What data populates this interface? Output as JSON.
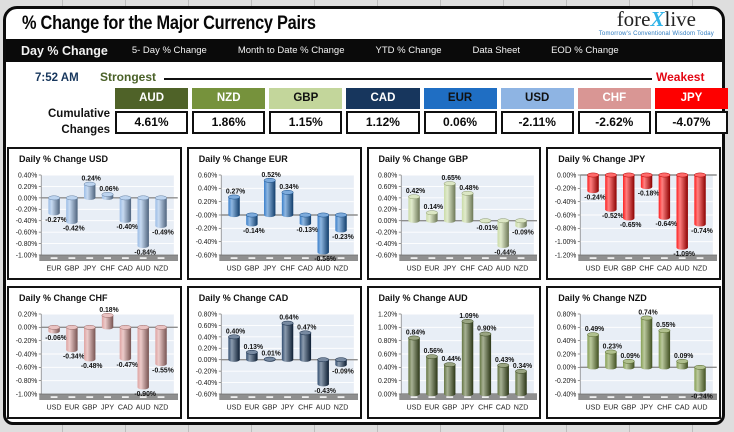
{
  "header": {
    "title": "% Change for the Major Currency Pairs",
    "logo": {
      "part1": "fore",
      "part2": "X",
      "part3": "live",
      "tagline": "Tomorrow's Conventional Wisdom Today"
    }
  },
  "tabs": [
    {
      "label": "Day % Change",
      "active": true
    },
    {
      "label": "5- Day % Change",
      "active": false
    },
    {
      "label": "Month to Date % Change",
      "active": false
    },
    {
      "label": "YTD % Change",
      "active": false
    },
    {
      "label": "Data Sheet",
      "active": false
    },
    {
      "label": "EOD % Change",
      "active": false
    }
  ],
  "status": {
    "time": "7:52 AM",
    "strongest_label": "Strongest",
    "weakest_label": "Weakest",
    "cumulative_label": "Cumulative Changes"
  },
  "cumulative": [
    {
      "code": "AUD",
      "value": "4.61%",
      "bg": "#4f6228",
      "fg": "#ffffff"
    },
    {
      "code": "NZD",
      "value": "1.86%",
      "bg": "#76923c",
      "fg": "#ffffff"
    },
    {
      "code": "GBP",
      "value": "1.15%",
      "bg": "#c3d69b",
      "fg": "#111111"
    },
    {
      "code": "CAD",
      "value": "1.12%",
      "bg": "#17365d",
      "fg": "#ffffff"
    },
    {
      "code": "EUR",
      "value": "0.06%",
      "bg": "#1f6ec3",
      "fg": "#111111"
    },
    {
      "code": "USD",
      "value": "-2.11%",
      "bg": "#8eb4e3",
      "fg": "#111111"
    },
    {
      "code": "CHF",
      "value": "-2.62%",
      "bg": "#d99694",
      "fg": "#ffffff"
    },
    {
      "code": "JPY",
      "value": "-4.07%",
      "bg": "#fe0000",
      "fg": "#ffffff"
    }
  ],
  "chart_data": [
    {
      "type": "bar",
      "title": "Daily % Change USD",
      "bar_color": "#8eb4e3",
      "categories": [
        "EUR",
        "GBP",
        "JPY",
        "CHF",
        "CAD",
        "AUD",
        "NZD"
      ],
      "values": [
        -0.27,
        -0.42,
        0.24,
        0.06,
        -0.4,
        -0.84,
        -0.49
      ],
      "ylim": [
        -1.0,
        0.4
      ],
      "ytick": 0.2,
      "grid": true,
      "label_format": "0.00%"
    },
    {
      "type": "bar",
      "title": "Daily % Change EUR",
      "bar_color": "#1f6ec3",
      "categories": [
        "USD",
        "GBP",
        "JPY",
        "CHF",
        "CAD",
        "AUD",
        "NZD"
      ],
      "values": [
        0.27,
        -0.14,
        0.52,
        0.34,
        -0.13,
        -0.56,
        -0.23
      ],
      "ylim": [
        -0.6,
        0.6
      ],
      "ytick": 0.2,
      "grid": true,
      "label_format": "0.00%"
    },
    {
      "type": "bar",
      "title": "Daily % Change GBP",
      "bar_color": "#c3d69b",
      "categories": [
        "USD",
        "EUR",
        "JPY",
        "CHF",
        "CAD",
        "AUD",
        "NZD"
      ],
      "values": [
        0.42,
        0.14,
        0.65,
        0.48,
        -0.01,
        -0.44,
        -0.09
      ],
      "ylim": [
        -0.6,
        0.8
      ],
      "ytick": 0.2,
      "grid": true,
      "label_format": "0.00%"
    },
    {
      "type": "bar",
      "title": "Daily % Change JPY",
      "bar_color": "#fe0000",
      "categories": [
        "USD",
        "EUR",
        "GBP",
        "CHF",
        "CAD",
        "AUD",
        "NZD"
      ],
      "values": [
        -0.24,
        -0.52,
        -0.65,
        -0.18,
        -0.64,
        -1.09,
        -0.74
      ],
      "ylim": [
        -1.2,
        0.0
      ],
      "ytick": 0.2,
      "grid": true,
      "label_format": "0.00%"
    },
    {
      "type": "bar",
      "title": "Daily % Change CHF",
      "bar_color": "#d99694",
      "categories": [
        "USD",
        "EUR",
        "GBP",
        "JPY",
        "CAD",
        "AUD",
        "NZD"
      ],
      "values": [
        -0.06,
        -0.34,
        -0.48,
        0.18,
        -0.47,
        -0.9,
        -0.55
      ],
      "ylim": [
        -1.0,
        0.2
      ],
      "ytick": 0.2,
      "grid": true,
      "label_format": "0.00%"
    },
    {
      "type": "bar",
      "title": "Daily % Change CAD",
      "bar_color": "#17365d",
      "categories": [
        "USD",
        "EUR",
        "GBP",
        "JPY",
        "CHF",
        "AUD",
        "NZD"
      ],
      "values": [
        0.4,
        0.13,
        0.01,
        0.64,
        0.47,
        -0.43,
        -0.09
      ],
      "ylim": [
        -0.6,
        0.8
      ],
      "ytick": 0.2,
      "grid": true,
      "label_format": "0.00%"
    },
    {
      "type": "bar",
      "title": "Daily % Change AUD",
      "bar_color": "#4f6228",
      "categories": [
        "USD",
        "EUR",
        "GBP",
        "JPY",
        "CHF",
        "CAD",
        "NZD"
      ],
      "values": [
        0.84,
        0.56,
        0.44,
        1.09,
        0.9,
        0.43,
        0.34
      ],
      "ylim": [
        0.0,
        1.2
      ],
      "ytick": 0.2,
      "grid": true,
      "label_format": "0.00%"
    },
    {
      "type": "bar",
      "title": "Daily % Change NZD",
      "bar_color": "#76923c",
      "categories": [
        "USD",
        "EUR",
        "GBP",
        "JPY",
        "CHF",
        "CAD",
        "AUD"
      ],
      "values": [
        0.49,
        0.23,
        0.09,
        0.74,
        0.55,
        0.09,
        -0.34
      ],
      "ylim": [
        -0.4,
        0.8
      ],
      "ytick": 0.2,
      "grid": true,
      "label_format": "0.00%"
    }
  ]
}
